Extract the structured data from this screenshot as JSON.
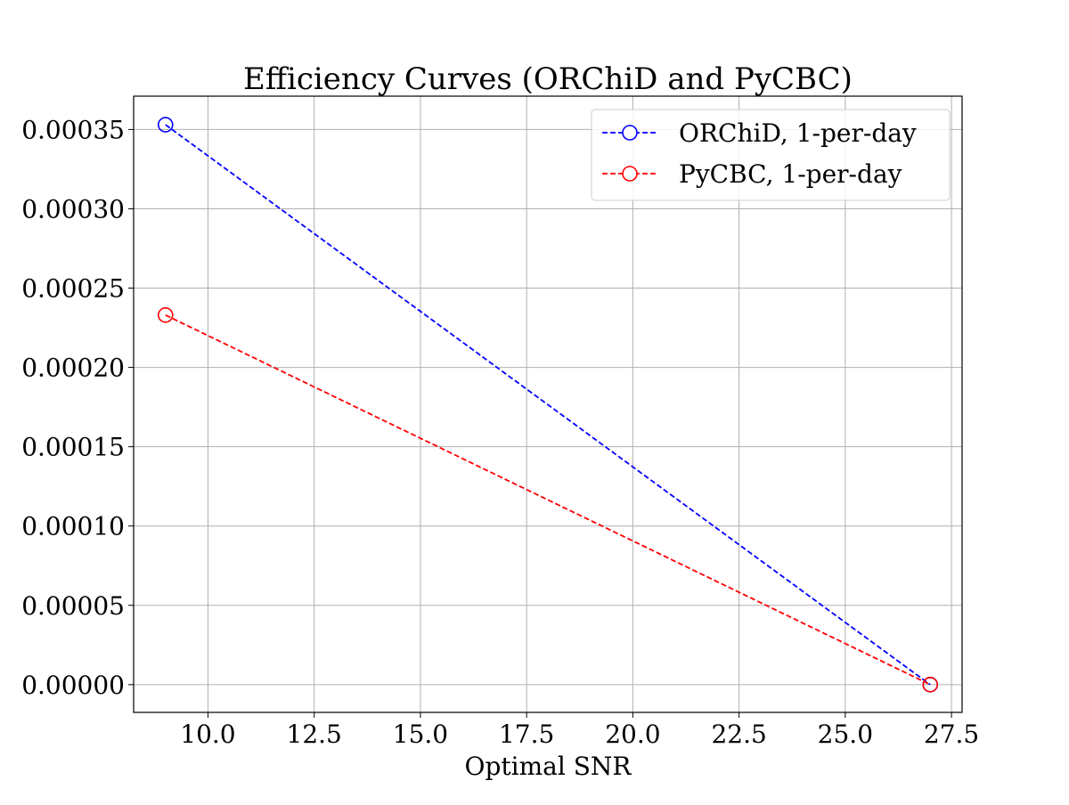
{
  "chart_data": {
    "type": "line",
    "title": "Efficiency Curves (ORChiD and PyCBC)",
    "xlabel": "Optimal SNR",
    "ylabel": "",
    "xlim": [
      8.25,
      27.75
    ],
    "ylim": [
      -1.75e-05,
      0.000371
    ],
    "xticks": [
      10.0,
      12.5,
      15.0,
      17.5,
      20.0,
      22.5,
      25.0,
      27.5
    ],
    "xtick_labels": [
      "10.0",
      "12.5",
      "15.0",
      "17.5",
      "20.0",
      "22.5",
      "25.0",
      "27.5"
    ],
    "yticks": [
      0.0,
      5e-05,
      0.0001,
      0.00015,
      0.0002,
      0.00025,
      0.0003,
      0.00035
    ],
    "ytick_labels": [
      "0.00000",
      "0.00005",
      "0.00010",
      "0.00015",
      "0.00020",
      "0.00025",
      "0.00030",
      "0.00035"
    ],
    "grid": true,
    "legend_position": "top-right",
    "series": [
      {
        "name": "ORChiD, 1-per-day",
        "color": "#0000ff",
        "linestyle": "dashed",
        "marker": "open-circle",
        "x": [
          9,
          27
        ],
        "y": [
          0.000353,
          0.0
        ]
      },
      {
        "name": "PyCBC, 1-per-day",
        "color": "#ff0000",
        "linestyle": "dashed",
        "marker": "open-circle",
        "x": [
          9,
          27
        ],
        "y": [
          0.000233,
          0.0
        ]
      }
    ]
  }
}
